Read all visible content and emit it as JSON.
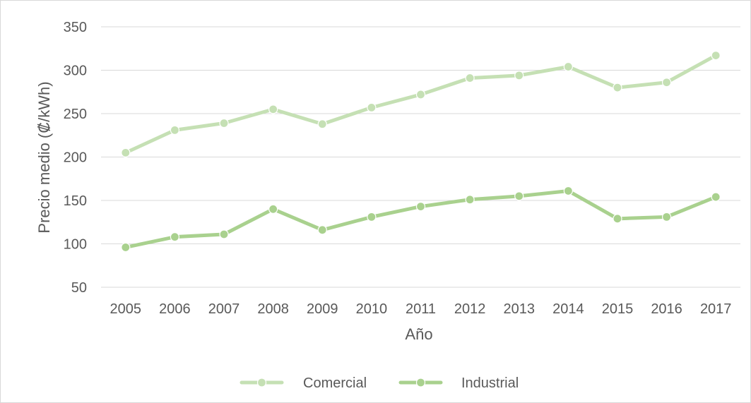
{
  "chart_data": {
    "type": "line",
    "title": "",
    "xlabel": "Año",
    "ylabel": "Precio medio (₡/kWh)",
    "x": [
      "2005",
      "2006",
      "2007",
      "2008",
      "2009",
      "2010",
      "2011",
      "2012",
      "2013",
      "2014",
      "2015",
      "2016",
      "2017"
    ],
    "ylim": [
      50,
      350
    ],
    "yticks": [
      50,
      100,
      150,
      200,
      250,
      300,
      350
    ],
    "grid": true,
    "legend_position": "bottom",
    "series": [
      {
        "name": "Comercial",
        "color": "#c5e0b4",
        "values": [
          205,
          231,
          239,
          255,
          238,
          257,
          272,
          291,
          294,
          304,
          280,
          286,
          317
        ]
      },
      {
        "name": "Industrial",
        "color": "#a9d18e",
        "values": [
          96,
          108,
          111,
          140,
          116,
          131,
          143,
          151,
          155,
          161,
          129,
          131,
          154
        ]
      }
    ]
  }
}
